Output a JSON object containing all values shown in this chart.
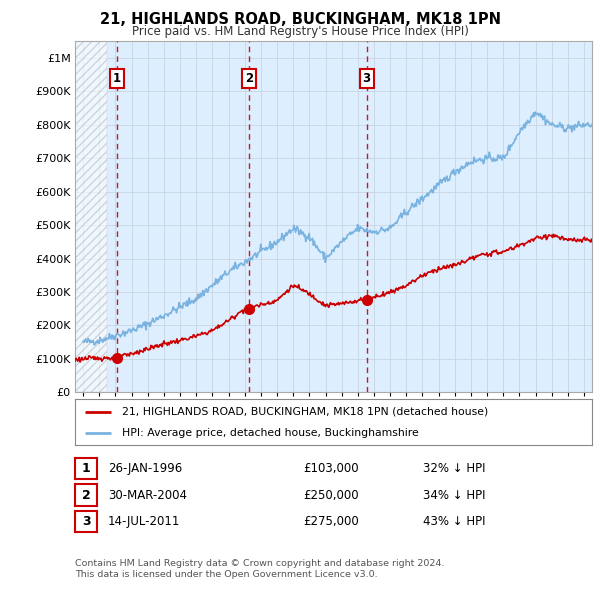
{
  "title": "21, HIGHLANDS ROAD, BUCKINGHAM, MK18 1PN",
  "subtitle": "Price paid vs. HM Land Registry's House Price Index (HPI)",
  "background_color": "#ffffff",
  "plot_background": "#ddeeff",
  "hatch_color": "#cccccc",
  "grid_color": "#c8d4e0",
  "transactions": [
    {
      "date_num": 1996.07,
      "price": 103000,
      "label": "1"
    },
    {
      "date_num": 2004.25,
      "price": 250000,
      "label": "2"
    },
    {
      "date_num": 2011.54,
      "price": 275000,
      "label": "3"
    }
  ],
  "hpi_line_color": "#7ab3e0",
  "price_line_color": "#cc0000",
  "vline_color": "#cc0000",
  "ylim": [
    0,
    1050000
  ],
  "xlim": [
    1993.5,
    2025.5
  ],
  "yticks": [
    0,
    100000,
    200000,
    300000,
    400000,
    500000,
    600000,
    700000,
    800000,
    900000,
    1000000
  ],
  "ytick_labels": [
    "£0",
    "£100K",
    "£200K",
    "£300K",
    "£400K",
    "£500K",
    "£600K",
    "£700K",
    "£800K",
    "£900K",
    "£1M"
  ],
  "xticks": [
    1994,
    1995,
    1996,
    1997,
    1998,
    1999,
    2000,
    2001,
    2002,
    2003,
    2004,
    2005,
    2006,
    2007,
    2008,
    2009,
    2010,
    2011,
    2012,
    2013,
    2014,
    2015,
    2016,
    2017,
    2018,
    2019,
    2020,
    2021,
    2022,
    2023,
    2024,
    2025
  ],
  "legend_entry1": "21, HIGHLANDS ROAD, BUCKINGHAM, MK18 1PN (detached house)",
  "legend_entry2": "HPI: Average price, detached house, Buckinghamshire",
  "footer": "Contains HM Land Registry data © Crown copyright and database right 2024.\nThis data is licensed under the Open Government Licence v3.0.",
  "table_rows": [
    [
      "1",
      "26-JAN-1996",
      "£103,000",
      "32% ↓ HPI"
    ],
    [
      "2",
      "30-MAR-2004",
      "£250,000",
      "34% ↓ HPI"
    ],
    [
      "3",
      "14-JUL-2011",
      "£275,000",
      "43% ↓ HPI"
    ]
  ]
}
